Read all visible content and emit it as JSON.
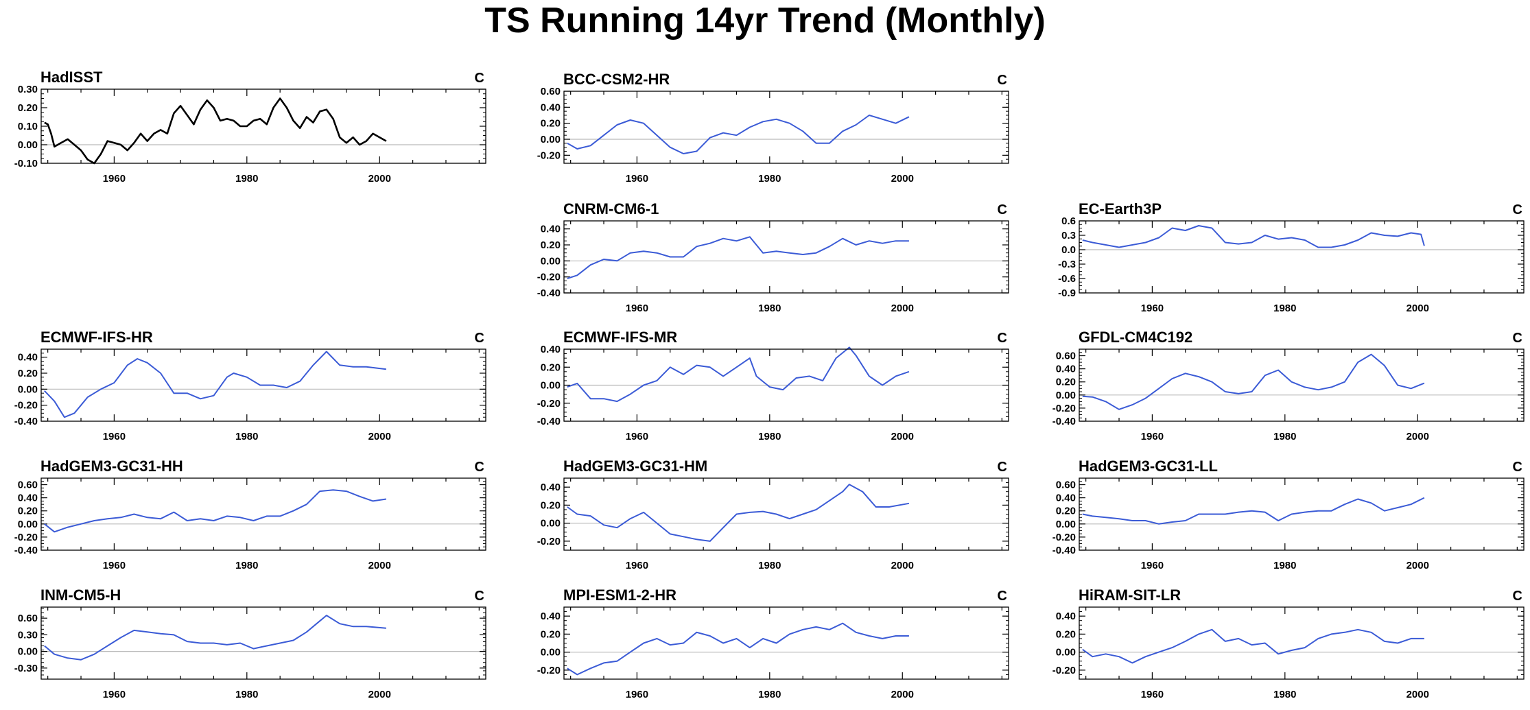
{
  "title": "TS Running 14yr Trend (Monthly)",
  "colors": {
    "observation": "#000000",
    "model": "#3b5bd6",
    "zero_line": "#bbbbbb",
    "frame": "#000000"
  },
  "chart_data": [
    {
      "type": "line",
      "title": "HadISST",
      "unit": "C",
      "color": "#000000",
      "xlim": [
        1949,
        2016
      ],
      "xticks": [
        1960,
        1980,
        2000
      ],
      "ylim": [
        -0.1,
        0.3
      ],
      "yticks": [
        -0.1,
        0.0,
        0.1,
        0.2,
        0.3
      ],
      "ytick_labels": [
        "-0.10",
        "0.00",
        "0.10",
        "0.20",
        "0.30"
      ],
      "x": [
        1949.5,
        1950,
        1950.5,
        1951,
        1952,
        1953,
        1954,
        1955,
        1956,
        1957,
        1958,
        1959,
        1960,
        1961,
        1962,
        1963,
        1964,
        1965,
        1966,
        1967,
        1968,
        1969,
        1970,
        1971,
        1972,
        1973,
        1974,
        1975,
        1976,
        1977,
        1978,
        1979,
        1980,
        1981,
        1982,
        1983,
        1984,
        1985,
        1986,
        1987,
        1988,
        1989,
        1990,
        1991,
        1992,
        1993,
        1994,
        1995,
        1996,
        1997,
        1998,
        1999,
        2000,
        2001
      ],
      "y": [
        0.12,
        0.11,
        0.06,
        -0.01,
        0.01,
        0.03,
        0.0,
        -0.03,
        -0.08,
        -0.1,
        -0.05,
        0.02,
        0.01,
        0.0,
        -0.03,
        0.01,
        0.06,
        0.02,
        0.06,
        0.08,
        0.06,
        0.17,
        0.21,
        0.16,
        0.11,
        0.19,
        0.24,
        0.2,
        0.13,
        0.14,
        0.13,
        0.1,
        0.1,
        0.13,
        0.14,
        0.11,
        0.2,
        0.25,
        0.2,
        0.13,
        0.09,
        0.15,
        0.12,
        0.18,
        0.19,
        0.14,
        0.04,
        0.01,
        0.04,
        0.0,
        0.02,
        0.06,
        0.04,
        0.02
      ]
    },
    {
      "type": "line",
      "title": "BCC-CSM2-HR",
      "unit": "C",
      "color": "#3b5bd6",
      "xlim": [
        1949,
        2016
      ],
      "xticks": [
        1960,
        1980,
        2000
      ],
      "ylim": [
        -0.3,
        0.6
      ],
      "yticks": [
        -0.2,
        0.0,
        0.2,
        0.4,
        0.6
      ],
      "ytick_labels": [
        "-0.20",
        "0.00",
        "0.20",
        "0.40",
        "0.60"
      ],
      "x": [
        1949.5,
        1951,
        1953,
        1955,
        1957,
        1959,
        1961,
        1963,
        1965,
        1967,
        1969,
        1971,
        1973,
        1975,
        1977,
        1979,
        1981,
        1983,
        1985,
        1987,
        1989,
        1991,
        1993,
        1995,
        1997,
        1999,
        2001
      ],
      "y": [
        -0.05,
        -0.12,
        -0.08,
        0.05,
        0.18,
        0.24,
        0.2,
        0.05,
        -0.1,
        -0.18,
        -0.15,
        0.02,
        0.08,
        0.05,
        0.15,
        0.22,
        0.25,
        0.2,
        0.1,
        -0.05,
        -0.05,
        0.1,
        0.18,
        0.3,
        0.25,
        0.2,
        0.28
      ]
    },
    {
      "type": "line",
      "title": "CNRM-CM6-1",
      "unit": "C",
      "color": "#3b5bd6",
      "xlim": [
        1949,
        2016
      ],
      "xticks": [
        1960,
        1980,
        2000
      ],
      "ylim": [
        -0.4,
        0.5
      ],
      "yticks": [
        -0.4,
        -0.2,
        0.0,
        0.2,
        0.4
      ],
      "ytick_labels": [
        "-0.40",
        "-0.20",
        "0.00",
        "0.20",
        "0.40"
      ],
      "x": [
        1949.5,
        1951,
        1953,
        1955,
        1957,
        1959,
        1961,
        1963,
        1965,
        1967,
        1969,
        1971,
        1973,
        1975,
        1977,
        1979,
        1981,
        1983,
        1985,
        1987,
        1989,
        1991,
        1993,
        1995,
        1997,
        1999,
        2001
      ],
      "y": [
        -0.22,
        -0.18,
        -0.05,
        0.02,
        0.0,
        0.1,
        0.12,
        0.1,
        0.05,
        0.05,
        0.18,
        0.22,
        0.28,
        0.25,
        0.3,
        0.1,
        0.12,
        0.1,
        0.08,
        0.1,
        0.18,
        0.28,
        0.2,
        0.25,
        0.22,
        0.25,
        0.25
      ]
    },
    {
      "type": "line",
      "title": "EC-Earth3P",
      "unit": "C",
      "color": "#3b5bd6",
      "xlim": [
        1949,
        2016
      ],
      "xticks": [
        1960,
        1980,
        2000
      ],
      "ylim": [
        -0.9,
        0.6
      ],
      "yticks": [
        -0.9,
        -0.6,
        -0.3,
        0.0,
        0.3,
        0.6
      ],
      "ytick_labels": [
        "-0.9",
        "-0.6",
        "-0.3",
        "0.0",
        "0.3",
        "0.6"
      ],
      "x": [
        1949.5,
        1951,
        1953,
        1955,
        1957,
        1959,
        1961,
        1963,
        1965,
        1967,
        1969,
        1971,
        1973,
        1975,
        1977,
        1979,
        1981,
        1983,
        1985,
        1987,
        1989,
        1991,
        1993,
        1995,
        1997,
        1999,
        2000.5,
        2001
      ],
      "y": [
        0.2,
        0.15,
        0.1,
        0.05,
        0.1,
        0.15,
        0.25,
        0.45,
        0.4,
        0.5,
        0.45,
        0.15,
        0.12,
        0.15,
        0.3,
        0.22,
        0.25,
        0.2,
        0.05,
        0.05,
        0.1,
        0.2,
        0.35,
        0.3,
        0.28,
        0.35,
        0.32,
        0.08
      ]
    },
    {
      "type": "line",
      "title": "ECMWF-IFS-HR",
      "unit": "C",
      "color": "#3b5bd6",
      "xlim": [
        1949,
        2016
      ],
      "xticks": [
        1960,
        1980,
        2000
      ],
      "ylim": [
        -0.4,
        0.5
      ],
      "yticks": [
        -0.4,
        -0.2,
        0.0,
        0.2,
        0.4
      ],
      "ytick_labels": [
        "-0.40",
        "-0.20",
        "0.00",
        "0.20",
        "0.40"
      ],
      "x": [
        1949.5,
        1951,
        1952.5,
        1954,
        1956,
        1958,
        1960,
        1962,
        1963.5,
        1965,
        1967,
        1969,
        1971,
        1973,
        1975,
        1977,
        1978,
        1980,
        1982,
        1984,
        1986,
        1988,
        1990,
        1992,
        1994,
        1996,
        1998,
        2001
      ],
      "y": [
        -0.02,
        -0.15,
        -0.35,
        -0.3,
        -0.1,
        0.0,
        0.08,
        0.3,
        0.38,
        0.33,
        0.2,
        -0.05,
        -0.05,
        -0.12,
        -0.08,
        0.15,
        0.2,
        0.15,
        0.05,
        0.05,
        0.02,
        0.1,
        0.3,
        0.47,
        0.3,
        0.28,
        0.28,
        0.25
      ]
    },
    {
      "type": "line",
      "title": "ECMWF-IFS-MR",
      "unit": "C",
      "color": "#3b5bd6",
      "xlim": [
        1949,
        2016
      ],
      "xticks": [
        1960,
        1980,
        2000
      ],
      "ylim": [
        -0.4,
        0.4
      ],
      "yticks": [
        -0.4,
        -0.2,
        0.0,
        0.2,
        0.4
      ],
      "ytick_labels": [
        "-0.40",
        "-0.20",
        "0.00",
        "0.20",
        "0.40"
      ],
      "x": [
        1949.5,
        1951,
        1953,
        1955,
        1957,
        1959,
        1961,
        1963,
        1965,
        1967,
        1969,
        1971,
        1973,
        1975,
        1977,
        1978,
        1980,
        1982,
        1984,
        1986,
        1988,
        1990,
        1992,
        1993,
        1995,
        1997,
        1999,
        2001
      ],
      "y": [
        -0.02,
        0.02,
        -0.15,
        -0.15,
        -0.18,
        -0.1,
        0.0,
        0.05,
        0.2,
        0.12,
        0.22,
        0.2,
        0.1,
        0.2,
        0.3,
        0.1,
        -0.02,
        -0.05,
        0.08,
        0.1,
        0.05,
        0.3,
        0.42,
        0.33,
        0.1,
        0.0,
        0.1,
        0.15
      ]
    },
    {
      "type": "line",
      "title": "GFDL-CM4C192",
      "unit": "C",
      "color": "#3b5bd6",
      "xlim": [
        1949,
        2016
      ],
      "xticks": [
        1960,
        1980,
        2000
      ],
      "ylim": [
        -0.4,
        0.7
      ],
      "yticks": [
        -0.4,
        -0.2,
        0.0,
        0.2,
        0.4,
        0.6
      ],
      "ytick_labels": [
        "-0.40",
        "-0.20",
        "0.00",
        "0.20",
        "0.40",
        "0.60"
      ],
      "x": [
        1949.5,
        1951,
        1953,
        1955,
        1957,
        1959,
        1961,
        1963,
        1965,
        1967,
        1969,
        1971,
        1973,
        1975,
        1977,
        1979,
        1981,
        1983,
        1985,
        1987,
        1989,
        1991,
        1993,
        1995,
        1997,
        1999,
        2001
      ],
      "y": [
        -0.02,
        -0.03,
        -0.1,
        -0.22,
        -0.15,
        -0.05,
        0.1,
        0.25,
        0.33,
        0.28,
        0.2,
        0.05,
        0.02,
        0.05,
        0.3,
        0.38,
        0.2,
        0.12,
        0.08,
        0.12,
        0.2,
        0.5,
        0.62,
        0.45,
        0.15,
        0.1,
        0.18
      ]
    },
    {
      "type": "line",
      "title": "HadGEM3-GC31-HH",
      "unit": "C",
      "color": "#3b5bd6",
      "xlim": [
        1949,
        2016
      ],
      "xticks": [
        1960,
        1980,
        2000
      ],
      "ylim": [
        -0.4,
        0.7
      ],
      "yticks": [
        -0.4,
        -0.2,
        0.0,
        0.2,
        0.4,
        0.6
      ],
      "ytick_labels": [
        "-0.40",
        "-0.20",
        "0.00",
        "0.20",
        "0.40",
        "0.60"
      ],
      "x": [
        1949.5,
        1951,
        1953,
        1955,
        1957,
        1959,
        1961,
        1963,
        1965,
        1967,
        1969,
        1971,
        1973,
        1975,
        1977,
        1979,
        1981,
        1983,
        1985,
        1987,
        1989,
        1991,
        1993,
        1995,
        1997,
        1999,
        2001
      ],
      "y": [
        0.0,
        -0.12,
        -0.05,
        0.0,
        0.05,
        0.08,
        0.1,
        0.15,
        0.1,
        0.08,
        0.18,
        0.05,
        0.08,
        0.05,
        0.12,
        0.1,
        0.05,
        0.12,
        0.12,
        0.2,
        0.3,
        0.5,
        0.52,
        0.5,
        0.42,
        0.35,
        0.38
      ]
    },
    {
      "type": "line",
      "title": "HadGEM3-GC31-HM",
      "unit": "C",
      "color": "#3b5bd6",
      "xlim": [
        1949,
        2016
      ],
      "xticks": [
        1960,
        1980,
        2000
      ],
      "ylim": [
        -0.3,
        0.5
      ],
      "yticks": [
        -0.2,
        0.0,
        0.2,
        0.4
      ],
      "ytick_labels": [
        "-0.20",
        "0.00",
        "0.20",
        "0.40"
      ],
      "x": [
        1949.5,
        1951,
        1953,
        1955,
        1957,
        1959,
        1961,
        1963,
        1965,
        1967,
        1969,
        1971,
        1973,
        1975,
        1977,
        1979,
        1981,
        1983,
        1985,
        1987,
        1989,
        1991,
        1992,
        1994,
        1996,
        1998,
        2001
      ],
      "y": [
        0.18,
        0.1,
        0.08,
        -0.02,
        -0.05,
        0.05,
        0.12,
        0.0,
        -0.12,
        -0.15,
        -0.18,
        -0.2,
        -0.05,
        0.1,
        0.12,
        0.13,
        0.1,
        0.05,
        0.1,
        0.15,
        0.25,
        0.35,
        0.43,
        0.35,
        0.18,
        0.18,
        0.22
      ]
    },
    {
      "type": "line",
      "title": "HadGEM3-GC31-LL",
      "unit": "C",
      "color": "#3b5bd6",
      "xlim": [
        1949,
        2016
      ],
      "xticks": [
        1960,
        1980,
        2000
      ],
      "ylim": [
        -0.4,
        0.7
      ],
      "yticks": [
        -0.4,
        -0.2,
        0.0,
        0.2,
        0.4,
        0.6
      ],
      "ytick_labels": [
        "-0.40",
        "-0.20",
        "0.00",
        "0.20",
        "0.40",
        "0.60"
      ],
      "x": [
        1949.5,
        1951,
        1953,
        1955,
        1957,
        1959,
        1961,
        1963,
        1965,
        1967,
        1969,
        1971,
        1973,
        1975,
        1977,
        1979,
        1981,
        1983,
        1985,
        1987,
        1989,
        1991,
        1993,
        1995,
        1997,
        1999,
        2001
      ],
      "y": [
        0.15,
        0.12,
        0.1,
        0.08,
        0.05,
        0.05,
        0.0,
        0.03,
        0.05,
        0.15,
        0.15,
        0.15,
        0.18,
        0.2,
        0.18,
        0.05,
        0.15,
        0.18,
        0.2,
        0.2,
        0.3,
        0.38,
        0.32,
        0.2,
        0.25,
        0.3,
        0.4
      ]
    },
    {
      "type": "line",
      "title": "INM-CM5-H",
      "unit": "C",
      "color": "#3b5bd6",
      "xlim": [
        1949,
        2016
      ],
      "xticks": [
        1960,
        1980,
        2000
      ],
      "ylim": [
        -0.5,
        0.8
      ],
      "yticks": [
        -0.3,
        0.0,
        0.3,
        0.6
      ],
      "ytick_labels": [
        "-0.30",
        "0.00",
        "0.30",
        "0.60"
      ],
      "x": [
        1949.5,
        1951,
        1953,
        1955,
        1957,
        1959,
        1961,
        1963,
        1965,
        1967,
        1969,
        1971,
        1973,
        1975,
        1977,
        1979,
        1981,
        1983,
        1985,
        1987,
        1989,
        1991,
        1992,
        1994,
        1996,
        1998,
        2001
      ],
      "y": [
        0.1,
        -0.05,
        -0.12,
        -0.15,
        -0.05,
        0.1,
        0.25,
        0.38,
        0.35,
        0.32,
        0.3,
        0.18,
        0.15,
        0.15,
        0.12,
        0.15,
        0.05,
        0.1,
        0.15,
        0.2,
        0.35,
        0.55,
        0.65,
        0.5,
        0.45,
        0.45,
        0.42
      ]
    },
    {
      "type": "line",
      "title": "MPI-ESM1-2-HR",
      "unit": "C",
      "color": "#3b5bd6",
      "xlim": [
        1949,
        2016
      ],
      "xticks": [
        1960,
        1980,
        2000
      ],
      "ylim": [
        -0.3,
        0.5
      ],
      "yticks": [
        -0.2,
        0.0,
        0.2,
        0.4
      ],
      "ytick_labels": [
        "-0.20",
        "0.00",
        "0.20",
        "0.40"
      ],
      "x": [
        1949.5,
        1951,
        1953,
        1955,
        1957,
        1959,
        1961,
        1963,
        1965,
        1967,
        1969,
        1971,
        1973,
        1975,
        1977,
        1979,
        1981,
        1983,
        1985,
        1987,
        1989,
        1991,
        1993,
        1995,
        1997,
        1999,
        2001
      ],
      "y": [
        -0.18,
        -0.25,
        -0.18,
        -0.12,
        -0.1,
        0.0,
        0.1,
        0.15,
        0.08,
        0.1,
        0.22,
        0.18,
        0.1,
        0.15,
        0.05,
        0.15,
        0.1,
        0.2,
        0.25,
        0.28,
        0.25,
        0.32,
        0.22,
        0.18,
        0.15,
        0.18,
        0.18
      ]
    },
    {
      "type": "line",
      "title": "HiRAM-SIT-LR",
      "unit": "C",
      "color": "#3b5bd6",
      "xlim": [
        1949,
        2016
      ],
      "xticks": [
        1960,
        1980,
        2000
      ],
      "ylim": [
        -0.3,
        0.5
      ],
      "yticks": [
        -0.2,
        0.0,
        0.2,
        0.4
      ],
      "ytick_labels": [
        "-0.20",
        "0.00",
        "0.20",
        "0.40"
      ],
      "x": [
        1949.5,
        1951,
        1953,
        1955,
        1957,
        1959,
        1961,
        1963,
        1965,
        1967,
        1969,
        1971,
        1973,
        1975,
        1977,
        1979,
        1981,
        1983,
        1985,
        1987,
        1989,
        1991,
        1993,
        1995,
        1997,
        1999,
        2001
      ],
      "y": [
        0.03,
        -0.05,
        -0.02,
        -0.05,
        -0.12,
        -0.05,
        0.0,
        0.05,
        0.12,
        0.2,
        0.25,
        0.12,
        0.15,
        0.08,
        0.1,
        -0.02,
        0.02,
        0.05,
        0.15,
        0.2,
        0.22,
        0.25,
        0.22,
        0.12,
        0.1,
        0.15,
        0.15
      ]
    }
  ]
}
